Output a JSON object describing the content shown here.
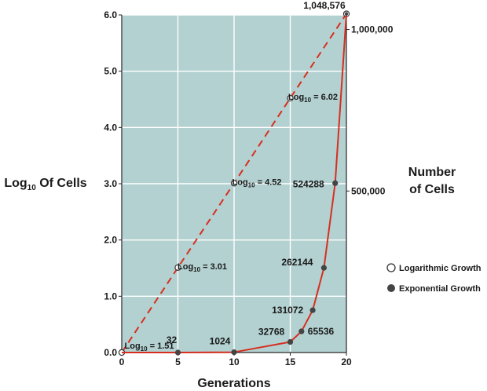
{
  "chart_data": {
    "type": "line",
    "xlabel": "Generations",
    "ylabel_parts": [
      "Log",
      "10",
      " Of Cells"
    ],
    "ylabel_right": [
      "Number",
      "of Cells"
    ],
    "x_ticks": [
      "0",
      "5",
      "10",
      "15",
      "20"
    ],
    "xlim": [
      0,
      20
    ],
    "y_ticks": [
      "0.0",
      "1.0",
      "2.0",
      "3.0",
      "4.0",
      "5.0",
      "6.0"
    ],
    "ylim": [
      0,
      6
    ],
    "grid": true,
    "right_ticks": [
      {
        "label": "500,000",
        "value": 500000
      },
      {
        "label": "1,000,000",
        "value": 1000000
      }
    ],
    "top_label": "1,048,576",
    "colors": {
      "plot_bg": "#b3d1d1",
      "grid": "#ffffff",
      "line": "#d62f1f",
      "filled_point": "#444444"
    },
    "series": [
      {
        "name": "Logarithmic Growth",
        "style": "dashed",
        "marker": "open",
        "x": [
          0,
          5,
          10,
          15,
          20
        ],
        "y": [
          0,
          1.51,
          3.01,
          4.52,
          6.02
        ],
        "annotations": [
          {
            "x": 5,
            "prefix": "Log",
            "sub": "10",
            "suffix": " = 1.51"
          },
          {
            "x": 10,
            "prefix": "Log",
            "sub": "10",
            "suffix": " = 3.01"
          },
          {
            "x": 15,
            "prefix": "Log",
            "sub": "10",
            "suffix": " = 4.52"
          },
          {
            "x": 20,
            "prefix": "Log",
            "sub": "10",
            "suffix": " = 6.02"
          }
        ]
      },
      {
        "name": "Exponential Growth",
        "style": "solid",
        "marker": "filled",
        "x": [
          5,
          10,
          15,
          16,
          17,
          18,
          19,
          20
        ],
        "y": [
          32,
          1024,
          32768,
          65536,
          131072,
          262144,
          524288,
          1048576
        ],
        "labels": [
          "32",
          "1024",
          "32768",
          "65536",
          "131072",
          "262144",
          "524288"
        ]
      }
    ]
  }
}
